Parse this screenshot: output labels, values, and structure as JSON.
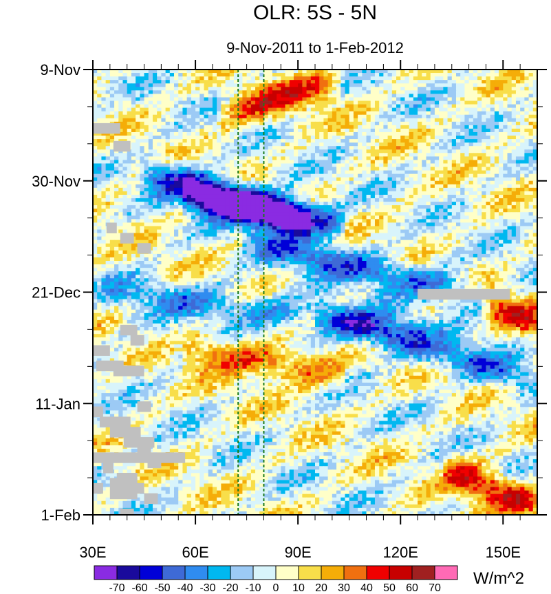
{
  "chart_data": {
    "type": "heatmap",
    "title": "OLR: 5S - 5N",
    "subtitle": "9-Nov-2011 to 1-Feb-2012",
    "xlabel": "",
    "ylabel": "",
    "x_range": [
      30,
      160
    ],
    "x_ticks": [
      {
        "value": 30,
        "label": "30E"
      },
      {
        "value": 60,
        "label": "60E"
      },
      {
        "value": 90,
        "label": "90E"
      },
      {
        "value": 120,
        "label": "120E"
      },
      {
        "value": 150,
        "label": "150E"
      }
    ],
    "y_range_days": [
      0,
      84
    ],
    "y_ticks": [
      {
        "value": 0,
        "label": "9-Nov"
      },
      {
        "value": 21,
        "label": "30-Nov"
      },
      {
        "value": 42,
        "label": "21-Dec"
      },
      {
        "value": 63,
        "label": "11-Jan"
      },
      {
        "value": 84,
        "label": "1-Feb"
      }
    ],
    "reference_lines_lon": [
      72.5,
      80
    ],
    "colorbar": {
      "units": "W/m^2",
      "levels": [
        -70,
        -60,
        -50,
        -40,
        -30,
        -20,
        -10,
        0,
        10,
        20,
        30,
        40,
        50,
        60,
        70
      ],
      "colors": [
        "#8a2be2",
        "#1a0a9c",
        "#0000d8",
        "#3e6ad6",
        "#2f8cf0",
        "#00b8f0",
        "#9ccaf5",
        "#d8f4fb",
        "#ffffc8",
        "#f8de4a",
        "#f5ad08",
        "#f07010",
        "#f00000",
        "#c80000",
        "#a02020",
        "#ff6ab5"
      ]
    },
    "field_features": [
      {
        "lon_start": 48,
        "lon_end": 90,
        "day_start": 20,
        "day_end": 28,
        "value": -60
      },
      {
        "lon_start": 80,
        "lon_end": 140,
        "day_start": 33,
        "day_end": 42,
        "value": -40
      },
      {
        "lon_start": 60,
        "lon_end": 100,
        "day_start": 24,
        "day_end": 29,
        "value": -70
      },
      {
        "lon_start": 40,
        "lon_end": 120,
        "day_start": 42,
        "day_end": 49,
        "value": -30
      },
      {
        "lon_start": 100,
        "lon_end": 155,
        "day_start": 47,
        "day_end": 58,
        "value": -40
      },
      {
        "lon_start": 70,
        "lon_end": 100,
        "day_start": 8,
        "day_end": 3,
        "value": 40
      },
      {
        "lon_start": 60,
        "lon_end": 100,
        "day_start": 53,
        "day_end": 57,
        "value": 40
      },
      {
        "lon_start": 135,
        "lon_end": 160,
        "day_start": 76,
        "day_end": 82,
        "value": 50
      },
      {
        "lon_start": 145,
        "lon_end": 160,
        "day_start": 44,
        "day_end": 48,
        "value": 40
      }
    ],
    "missing_data_color": "#c0c0c0"
  }
}
